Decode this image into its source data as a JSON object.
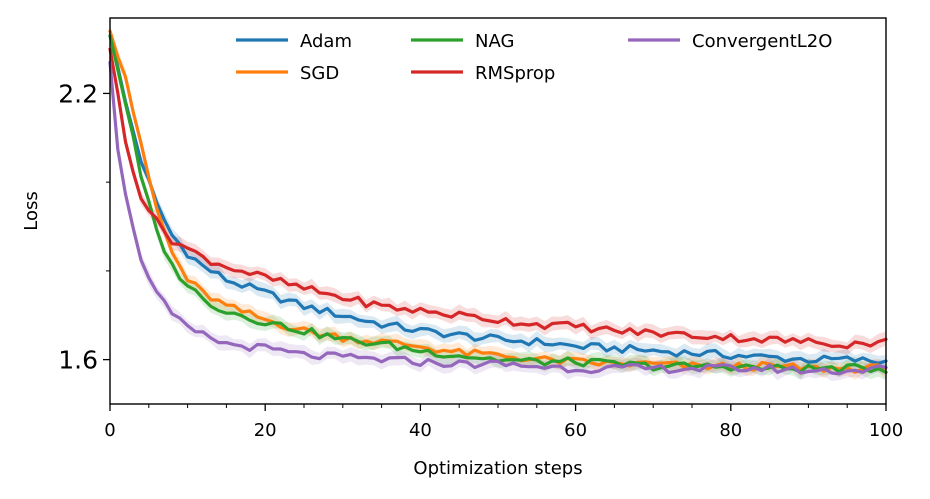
{
  "chart_data": {
    "type": "line",
    "title": "",
    "xlabel": "Optimization steps",
    "ylabel": "Loss",
    "xlim": [
      0,
      100
    ],
    "ylim": [
      1.5,
      2.37
    ],
    "xticks": [
      "0",
      "20",
      "40",
      "60",
      "80",
      "100"
    ],
    "yticks": [
      "1.6",
      "2.2"
    ],
    "grid": false,
    "legend_position": "top",
    "series": [
      {
        "name": "Adam",
        "color": "#1f77b4",
        "x": [
          0,
          2,
          4,
          6,
          8,
          10,
          12,
          15,
          20,
          25,
          30,
          35,
          40,
          45,
          50,
          55,
          60,
          65,
          70,
          75,
          80,
          85,
          90,
          95,
          100
        ],
        "values": [
          2.33,
          2.18,
          2.05,
          1.95,
          1.88,
          1.84,
          1.81,
          1.78,
          1.75,
          1.72,
          1.7,
          1.68,
          1.665,
          1.655,
          1.645,
          1.64,
          1.63,
          1.625,
          1.62,
          1.615,
          1.61,
          1.605,
          1.6,
          1.6,
          1.595
        ]
      },
      {
        "name": "SGD",
        "color": "#ff7f0e",
        "x": [
          0,
          2,
          4,
          6,
          8,
          10,
          12,
          15,
          20,
          25,
          30,
          35,
          40,
          45,
          50,
          55,
          60,
          65,
          70,
          75,
          80,
          85,
          90,
          95,
          100
        ],
        "values": [
          2.34,
          2.24,
          2.08,
          1.94,
          1.84,
          1.78,
          1.75,
          1.72,
          1.69,
          1.665,
          1.65,
          1.64,
          1.63,
          1.615,
          1.61,
          1.6,
          1.595,
          1.59,
          1.59,
          1.585,
          1.585,
          1.585,
          1.58,
          1.58,
          1.58
        ]
      },
      {
        "name": "NAG",
        "color": "#2ca02c",
        "x": [
          0,
          2,
          4,
          6,
          8,
          10,
          12,
          15,
          20,
          25,
          30,
          35,
          40,
          45,
          50,
          55,
          60,
          65,
          70,
          75,
          80,
          85,
          90,
          95,
          100
        ],
        "values": [
          2.33,
          2.18,
          2.01,
          1.89,
          1.81,
          1.77,
          1.735,
          1.71,
          1.685,
          1.665,
          1.645,
          1.635,
          1.62,
          1.61,
          1.6,
          1.595,
          1.595,
          1.59,
          1.585,
          1.585,
          1.585,
          1.58,
          1.58,
          1.58,
          1.58
        ]
      },
      {
        "name": "RMSprop",
        "color": "#d62728",
        "x": [
          0,
          2,
          4,
          6,
          8,
          10,
          12,
          15,
          20,
          25,
          30,
          35,
          40,
          45,
          50,
          55,
          60,
          65,
          70,
          75,
          80,
          85,
          90,
          95,
          100
        ],
        "values": [
          2.3,
          2.09,
          1.97,
          1.91,
          1.87,
          1.85,
          1.83,
          1.81,
          1.785,
          1.76,
          1.74,
          1.72,
          1.71,
          1.7,
          1.69,
          1.68,
          1.675,
          1.665,
          1.66,
          1.655,
          1.65,
          1.645,
          1.64,
          1.635,
          1.64
        ]
      },
      {
        "name": "ConvergentL2O",
        "color": "#9467bd",
        "x": [
          0,
          1,
          2,
          3,
          4,
          5,
          6,
          8,
          10,
          12,
          15,
          20,
          25,
          30,
          35,
          40,
          45,
          50,
          55,
          60,
          65,
          70,
          75,
          80,
          85,
          90,
          95,
          100
        ],
        "values": [
          2.27,
          2.08,
          1.98,
          1.89,
          1.83,
          1.79,
          1.75,
          1.7,
          1.67,
          1.655,
          1.635,
          1.625,
          1.61,
          1.605,
          1.6,
          1.595,
          1.59,
          1.59,
          1.585,
          1.58,
          1.58,
          1.58,
          1.58,
          1.58,
          1.58,
          1.575,
          1.575,
          1.58
        ]
      }
    ]
  }
}
